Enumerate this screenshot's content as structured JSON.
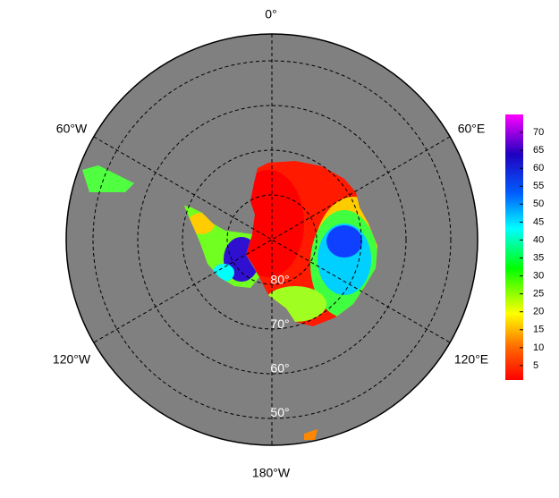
{
  "map": {
    "longitude_labels": [
      "0°",
      "60°E",
      "120°E",
      "180°W",
      "120°W",
      "60°W"
    ],
    "latitude_labels": [
      "80°",
      "70°",
      "60°",
      "50°"
    ]
  },
  "colorbar": {
    "range": [
      1,
      75
    ],
    "ticks": [
      5,
      10,
      15,
      20,
      25,
      30,
      35,
      40,
      45,
      50,
      55,
      60,
      65,
      70
    ]
  }
}
